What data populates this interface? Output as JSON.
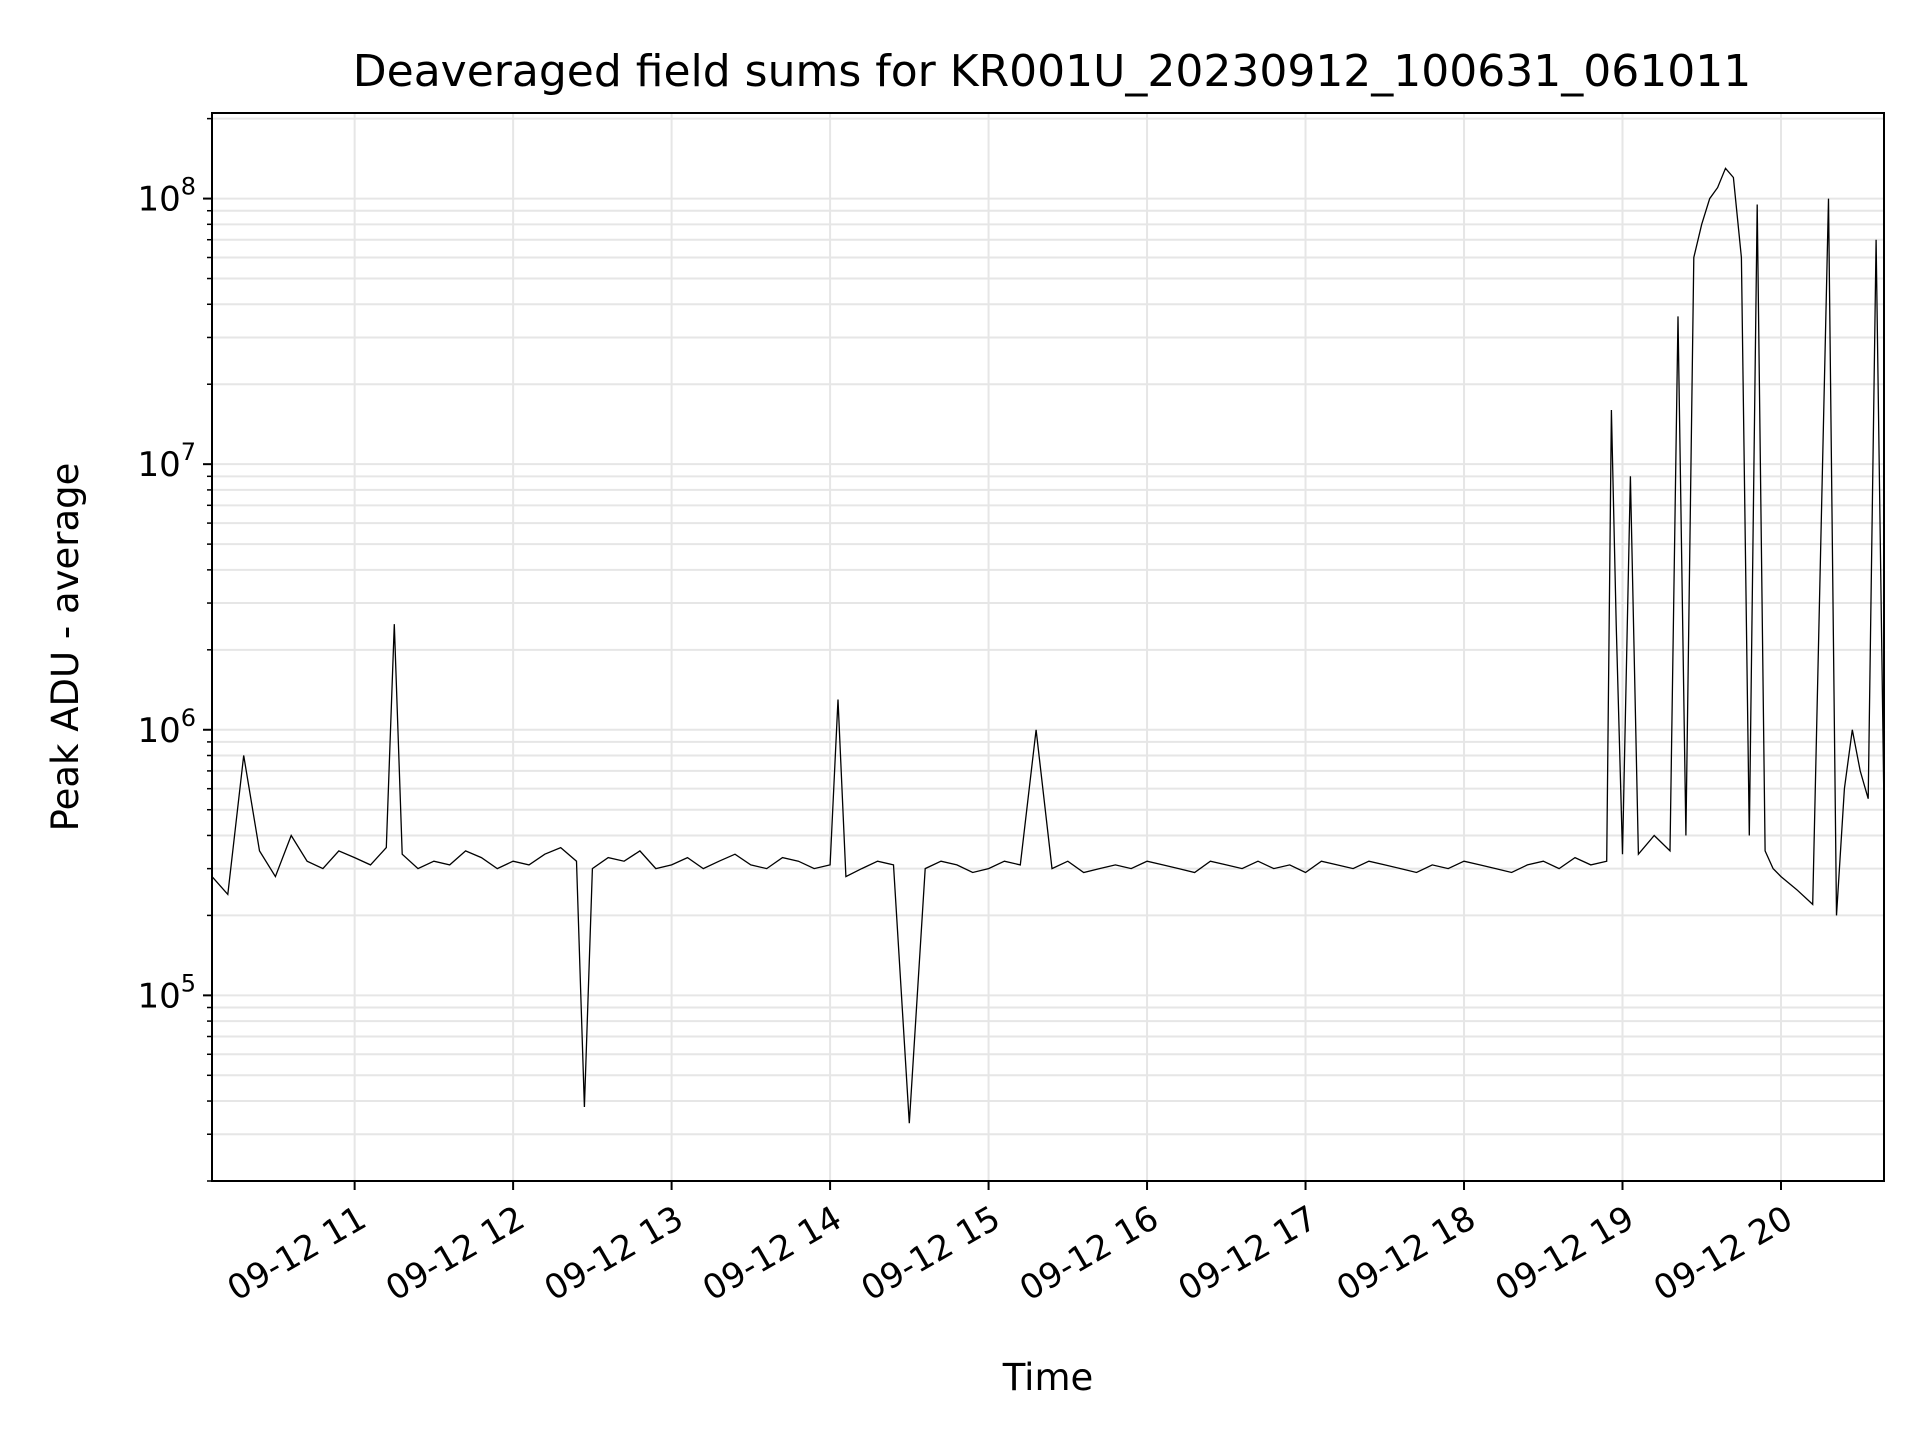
{
  "chart_data": {
    "type": "line",
    "title": "Deaveraged field sums for KR001U_20230912_100631_061011",
    "xlabel": "Time",
    "ylabel": "Peak ADU - average",
    "yscale": "log",
    "xlim": [
      10.1,
      20.65
    ],
    "ylim": [
      20000,
      210000000
    ],
    "x_ticks": [
      {
        "value": 11,
        "label": "09-12 11"
      },
      {
        "value": 12,
        "label": "09-12 12"
      },
      {
        "value": 13,
        "label": "09-12 13"
      },
      {
        "value": 14,
        "label": "09-12 14"
      },
      {
        "value": 15,
        "label": "09-12 15"
      },
      {
        "value": 16,
        "label": "09-12 16"
      },
      {
        "value": 17,
        "label": "09-12 17"
      },
      {
        "value": 18,
        "label": "09-12 18"
      },
      {
        "value": 19,
        "label": "09-12 19"
      },
      {
        "value": 20,
        "label": "09-12 20"
      }
    ],
    "y_ticks": [
      {
        "value": 100000,
        "base": "10",
        "exp": "5"
      },
      {
        "value": 1000000,
        "base": "10",
        "exp": "6"
      },
      {
        "value": 10000000,
        "base": "10",
        "exp": "7"
      },
      {
        "value": 100000000,
        "base": "10",
        "exp": "8"
      }
    ],
    "grid": true,
    "line_color": "#000000",
    "series": [
      {
        "x": [
          10.1,
          10.2,
          10.3,
          10.4,
          10.5,
          10.6,
          10.7,
          10.8,
          10.9,
          11.0,
          11.1,
          11.2,
          11.25,
          11.3,
          11.4,
          11.5,
          11.6,
          11.7,
          11.8,
          11.9,
          12.0,
          12.1,
          12.2,
          12.3,
          12.4,
          12.45,
          12.5,
          12.6,
          12.7,
          12.8,
          12.9,
          13.0,
          13.1,
          13.2,
          13.3,
          13.4,
          13.5,
          13.6,
          13.7,
          13.8,
          13.9,
          14.0,
          14.05,
          14.1,
          14.2,
          14.3,
          14.4,
          14.5,
          14.6,
          14.7,
          14.8,
          14.9,
          15.0,
          15.1,
          15.2,
          15.3,
          15.4,
          15.5,
          15.6,
          15.7,
          15.8,
          15.9,
          16.0,
          16.1,
          16.2,
          16.3,
          16.4,
          16.5,
          16.6,
          16.7,
          16.8,
          16.9,
          17.0,
          17.1,
          17.2,
          17.3,
          17.4,
          17.5,
          17.6,
          17.7,
          17.8,
          17.9,
          18.0,
          18.1,
          18.2,
          18.3,
          18.4,
          18.5,
          18.6,
          18.7,
          18.8,
          18.9,
          18.93,
          18.96,
          19.0,
          19.05,
          19.1,
          19.2,
          19.3,
          19.35,
          19.4,
          19.45,
          19.5,
          19.55,
          19.6,
          19.65,
          19.7,
          19.75,
          19.8,
          19.85,
          19.9,
          19.95,
          20.0,
          20.1,
          20.2,
          20.3,
          20.35,
          20.4,
          20.45,
          20.5,
          20.55,
          20.6,
          20.65
        ],
        "y": [
          280000,
          240000,
          800000,
          350000,
          280000,
          400000,
          320000,
          300000,
          350000,
          330000,
          310000,
          360000,
          2500000,
          340000,
          300000,
          320000,
          310000,
          350000,
          330000,
          300000,
          320000,
          310000,
          340000,
          360000,
          320000,
          38000,
          300000,
          330000,
          320000,
          350000,
          300000,
          310000,
          330000,
          300000,
          320000,
          340000,
          310000,
          300000,
          330000,
          320000,
          300000,
          310000,
          1300000,
          280000,
          300000,
          320000,
          310000,
          33000,
          300000,
          320000,
          310000,
          290000,
          300000,
          320000,
          310000,
          1000000,
          300000,
          320000,
          290000,
          300000,
          310000,
          300000,
          320000,
          310000,
          300000,
          290000,
          320000,
          310000,
          300000,
          320000,
          300000,
          310000,
          290000,
          320000,
          310000,
          300000,
          320000,
          310000,
          300000,
          290000,
          310000,
          300000,
          320000,
          310000,
          300000,
          290000,
          310000,
          320000,
          300000,
          330000,
          310000,
          320000,
          16000000,
          2500000,
          340000,
          9000000,
          340000,
          400000,
          350000,
          36000000,
          400000,
          60000000,
          80000000,
          100000000,
          110000000,
          130000000,
          120000000,
          60000000,
          400000,
          95000000,
          350000,
          300000,
          280000,
          250000,
          220000,
          100000000,
          200000,
          600000,
          1000000,
          700000,
          550000,
          70000000,
          500000
        ]
      }
    ]
  }
}
